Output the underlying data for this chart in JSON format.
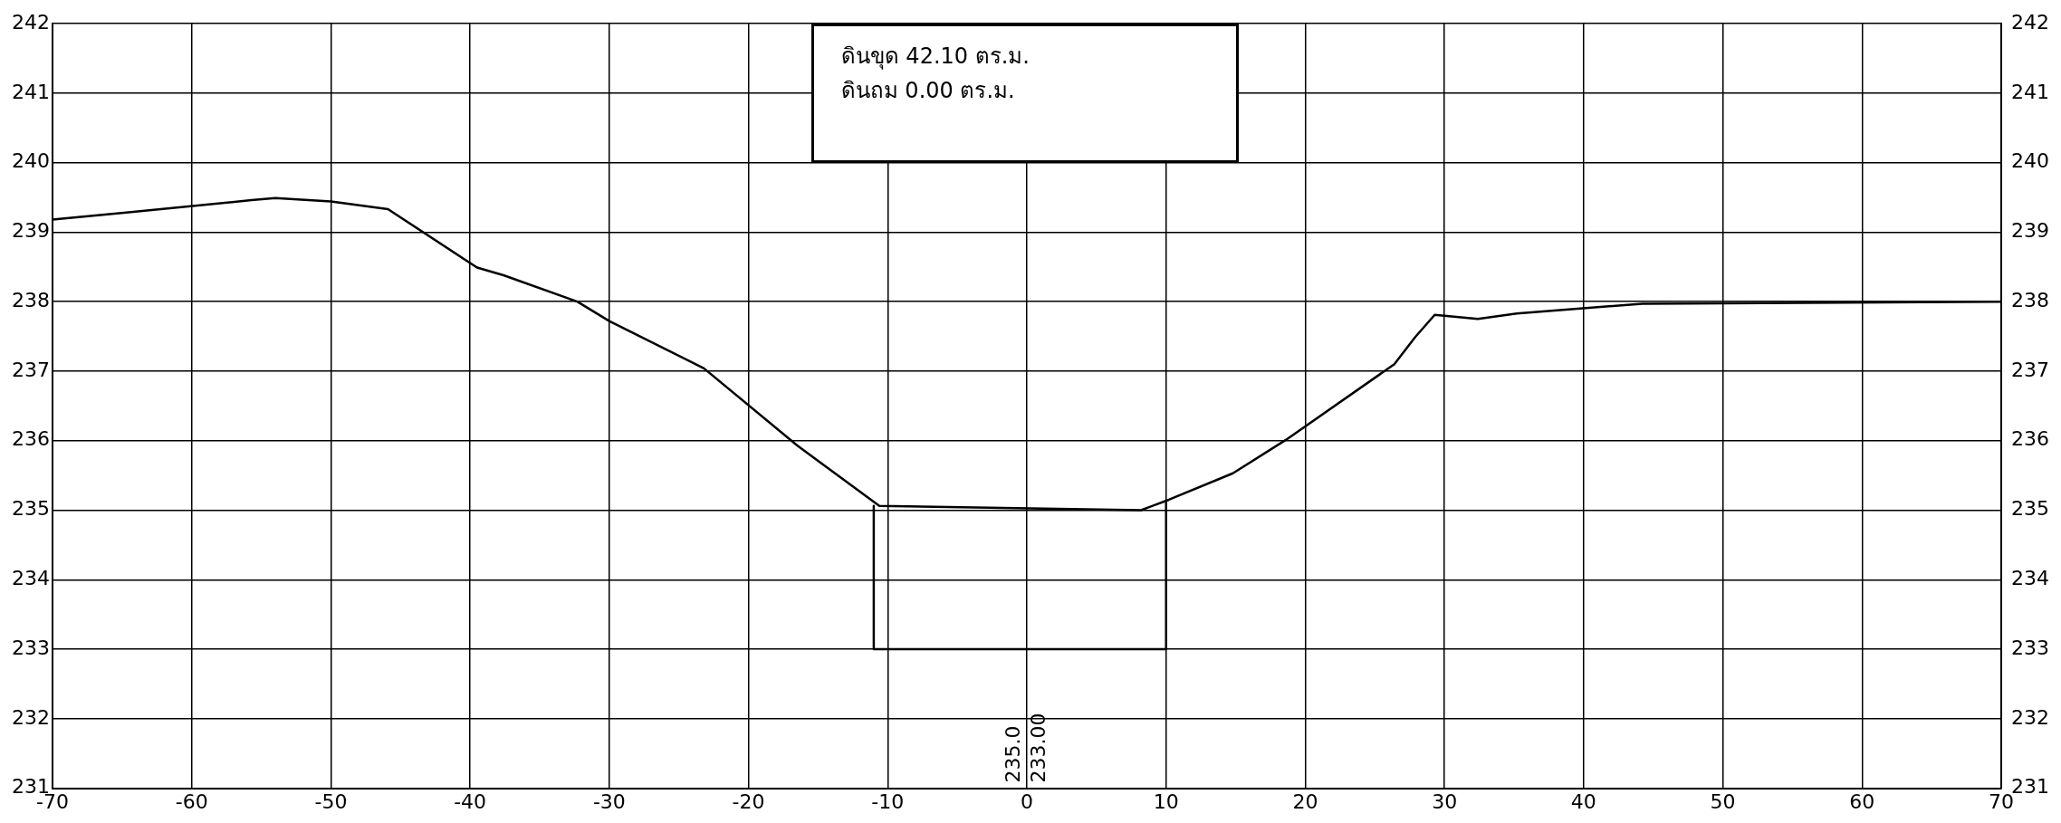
{
  "chart_data": {
    "type": "line",
    "series": [
      {
        "color": "#000000",
        "x": [
          -70,
          -64.7,
          -55.7,
          -54,
          -50,
          -45.9,
          -39.5,
          -37.6,
          -32.3,
          -30,
          -23.2,
          -16.5,
          -10.6,
          8.2,
          10.2,
          14.8,
          18.6,
          26.4,
          27.9,
          29.3,
          32.4,
          35.2,
          44.2,
          70
        ],
        "values": [
          239.18,
          239.28,
          239.46,
          239.49,
          239.44,
          239.33,
          238.49,
          238.38,
          238.0,
          237.72,
          237.04,
          235.93,
          235.06,
          235.0,
          235.15,
          235.53,
          236.01,
          237.1,
          237.49,
          237.81,
          237.75,
          237.83,
          237.97,
          238.0
        ]
      },
      {
        "color": "#000000",
        "x": [
          -11,
          -11,
          10,
          10
        ],
        "values": [
          235.06,
          233,
          233,
          235.15
        ]
      }
    ],
    "xlim": [
      -70,
      70
    ],
    "xticks": [
      -70,
      -60,
      -50,
      -40,
      -30,
      -20,
      -10,
      0,
      10,
      20,
      30,
      40,
      50,
      60,
      70
    ],
    "ylim": [
      231,
      242
    ],
    "yticks": [
      231,
      232,
      233,
      234,
      235,
      236,
      237,
      238,
      239,
      240,
      241,
      242
    ],
    "y2lim": [
      231,
      242
    ],
    "y2ticks": [
      231,
      232,
      233,
      234,
      235,
      236,
      237,
      238,
      239,
      240,
      241,
      242
    ],
    "grid": true,
    "marker": "none",
    "line_style": "solid",
    "legend": false,
    "annotations": [
      "ดินขุด 42.10 ตร.ม.",
      "ดินถม 0.00 ตร.ม.",
      "235.0",
      "233.00"
    ]
  }
}
